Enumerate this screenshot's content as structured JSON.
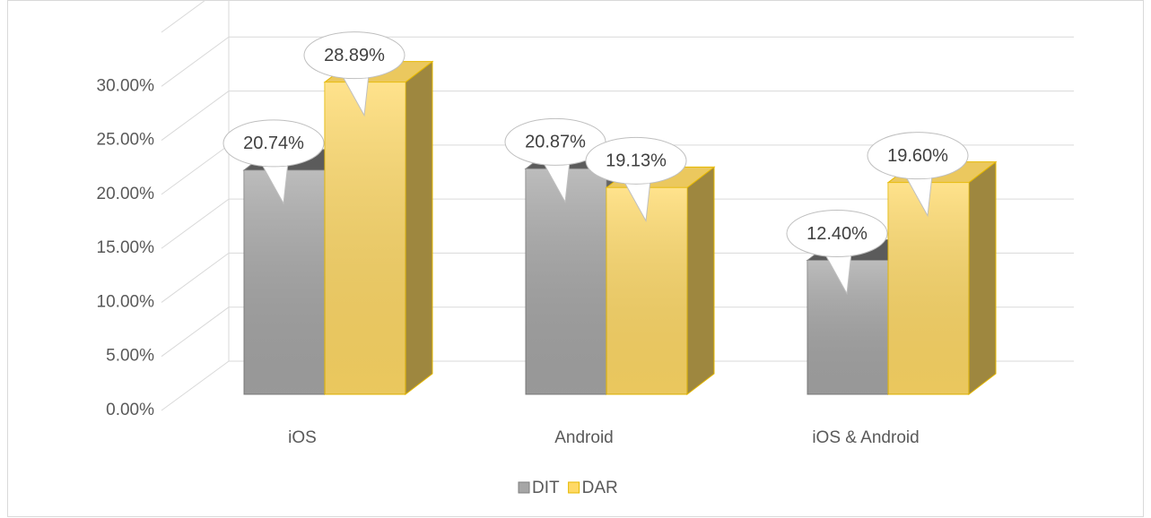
{
  "chart_data": {
    "type": "bar3d",
    "categories": [
      "iOS",
      "Android",
      "iOS & Android"
    ],
    "series": [
      {
        "name": "DIT",
        "color": "#a6a6a6",
        "values": [
          20.74,
          20.87,
          12.4
        ],
        "value_labels": [
          "20.74%",
          "20.87%",
          "12.40%"
        ]
      },
      {
        "name": "DAR",
        "color": "#ffd966",
        "values": [
          28.89,
          19.13,
          19.6
        ],
        "value_labels": [
          "28.89%",
          "19.13%",
          "19.60%"
        ]
      }
    ],
    "ylim": [
      0,
      35
    ],
    "yticks": [
      {
        "value": 0,
        "label": "0.00%"
      },
      {
        "value": 5,
        "label": "5.00%"
      },
      {
        "value": 10,
        "label": "10.00%"
      },
      {
        "value": 15,
        "label": "15.00%"
      },
      {
        "value": 20,
        "label": "20.00%"
      },
      {
        "value": 25,
        "label": "25.00%"
      },
      {
        "value": 30,
        "label": "30.00%"
      }
    ],
    "grid": true,
    "legend": "bottom"
  }
}
